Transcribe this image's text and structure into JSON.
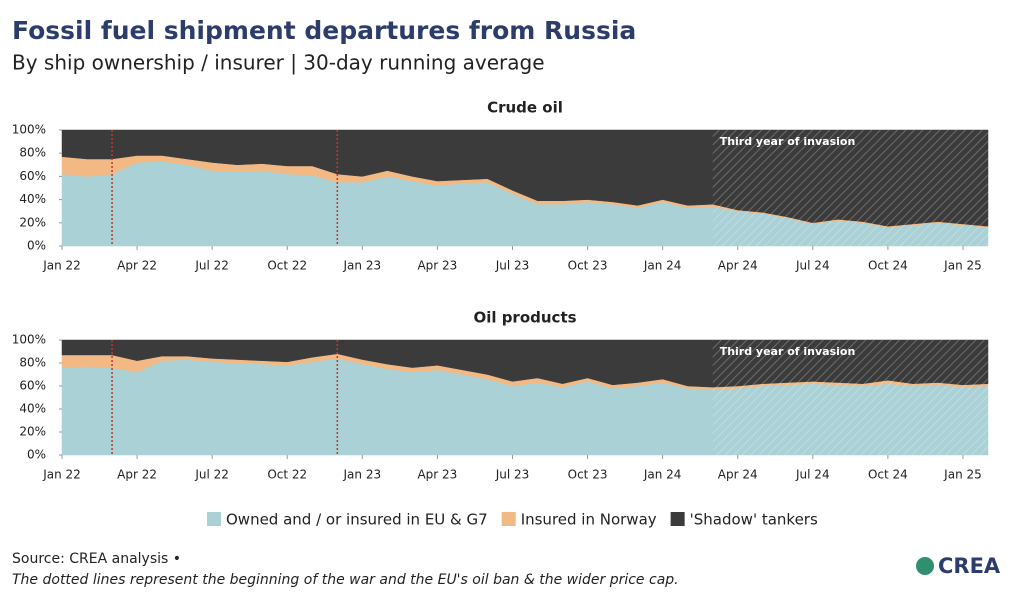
{
  "title": "Fossil fuel shipment departures from Russia",
  "subtitle": "By ship ownership / insurer | 30-day running average",
  "source": "Source: CREA analysis •",
  "note": "The dotted lines represent the beginning of the war and the EU's oil ban & the wider price cap.",
  "logo": "CREA",
  "chart_data": [
    {
      "type": "stacked-area",
      "title": "Crude oil",
      "x": [
        "2022-01",
        "2022-02",
        "2022-03",
        "2022-04",
        "2022-05",
        "2022-06",
        "2022-07",
        "2022-08",
        "2022-09",
        "2022-10",
        "2022-11",
        "2022-12",
        "2023-01",
        "2023-02",
        "2023-03",
        "2023-04",
        "2023-05",
        "2023-06",
        "2023-07",
        "2023-08",
        "2023-09",
        "2023-10",
        "2023-11",
        "2023-12",
        "2024-01",
        "2024-02",
        "2024-03",
        "2024-04",
        "2024-05",
        "2024-06",
        "2024-07",
        "2024-08",
        "2024-09",
        "2024-10",
        "2024-11",
        "2024-12",
        "2025-01",
        "2025-02"
      ],
      "series": [
        {
          "name": "Owned and / or insured in EU & G7",
          "color": "#a9d1d6",
          "values": [
            62,
            60,
            62,
            72,
            73,
            70,
            65,
            64,
            65,
            62,
            61,
            55,
            55,
            60,
            56,
            52,
            54,
            55,
            45,
            36,
            36,
            38,
            36,
            33,
            38,
            33,
            34,
            30,
            28,
            24,
            19,
            22,
            20,
            16,
            18,
            20,
            18,
            16
          ]
        },
        {
          "name": "Insured in Norway",
          "color": "#f2b984",
          "values": [
            15,
            15,
            13,
            6,
            5,
            5,
            7,
            6,
            6,
            7,
            8,
            7,
            5,
            5,
            4,
            4,
            3,
            3,
            3,
            3,
            3,
            2,
            2,
            2,
            2,
            2,
            2,
            1,
            1,
            1,
            1,
            1,
            1,
            1,
            1,
            1,
            1,
            1
          ]
        },
        {
          "name": "'Shadow' tankers",
          "color": "#3b3b3b",
          "values": [
            23,
            25,
            25,
            22,
            22,
            25,
            28,
            30,
            29,
            31,
            31,
            38,
            40,
            35,
            40,
            44,
            43,
            42,
            52,
            61,
            61,
            60,
            62,
            65,
            60,
            65,
            64,
            69,
            71,
            75,
            80,
            77,
            79,
            83,
            81,
            79,
            81,
            83
          ]
        }
      ],
      "xlim": [
        "2022-01",
        "2025-02"
      ],
      "xticks": [
        {
          "value": "2022-01",
          "label": "Jan 22"
        },
        {
          "value": "2022-04",
          "label": "Apr 22"
        },
        {
          "value": "2022-07",
          "label": "Jul 22"
        },
        {
          "value": "2022-10",
          "label": "Oct 22"
        },
        {
          "value": "2023-01",
          "label": "Jan 23"
        },
        {
          "value": "2023-04",
          "label": "Apr 23"
        },
        {
          "value": "2023-07",
          "label": "Jul 23"
        },
        {
          "value": "2023-10",
          "label": "Oct 23"
        },
        {
          "value": "2024-01",
          "label": "Jan 24"
        },
        {
          "value": "2024-04",
          "label": "Apr 24"
        },
        {
          "value": "2024-07",
          "label": "Jul 24"
        },
        {
          "value": "2024-10",
          "label": "Oct 24"
        },
        {
          "value": "2025-01",
          "label": "Jan 25"
        }
      ],
      "ylim": [
        0,
        100
      ],
      "yticks": [
        {
          "value": 0,
          "label": "0%"
        },
        {
          "value": 20,
          "label": "20%"
        },
        {
          "value": 40,
          "label": "40%"
        },
        {
          "value": 60,
          "label": "60%"
        },
        {
          "value": 80,
          "label": "80%"
        },
        {
          "value": 100,
          "label": "100%"
        }
      ],
      "event_lines": [
        "2022-03",
        "2022-12"
      ],
      "highlight": {
        "start": "2024-03",
        "label": "Third year of invasion"
      }
    },
    {
      "type": "stacked-area",
      "title": "Oil products",
      "x": [
        "2022-01",
        "2022-02",
        "2022-03",
        "2022-04",
        "2022-05",
        "2022-06",
        "2022-07",
        "2022-08",
        "2022-09",
        "2022-10",
        "2022-11",
        "2022-12",
        "2023-01",
        "2023-02",
        "2023-03",
        "2023-04",
        "2023-05",
        "2023-06",
        "2023-07",
        "2023-08",
        "2023-09",
        "2023-10",
        "2023-11",
        "2023-12",
        "2024-01",
        "2024-02",
        "2024-03",
        "2024-04",
        "2024-05",
        "2024-06",
        "2024-07",
        "2024-08",
        "2024-09",
        "2024-10",
        "2024-11",
        "2024-12",
        "2025-01",
        "2025-02"
      ],
      "series": [
        {
          "name": "Owned and / or insured in EU & G7",
          "color": "#a9d1d6",
          "values": [
            76,
            77,
            76,
            72,
            82,
            83,
            81,
            80,
            79,
            78,
            81,
            84,
            79,
            75,
            72,
            74,
            70,
            66,
            60,
            63,
            59,
            64,
            58,
            60,
            63,
            58,
            57,
            58,
            60,
            61,
            62,
            61,
            60,
            62,
            60,
            61,
            59,
            60
          ]
        },
        {
          "name": "Insured in Norway",
          "color": "#f2b984",
          "values": [
            11,
            10,
            11,
            10,
            4,
            3,
            3,
            3,
            3,
            3,
            4,
            4,
            4,
            4,
            4,
            4,
            4,
            4,
            4,
            4,
            3,
            3,
            3,
            3,
            3,
            2,
            2,
            2,
            2,
            2,
            2,
            2,
            2,
            3,
            2,
            2,
            2,
            2
          ]
        },
        {
          "name": "'Shadow' tankers",
          "color": "#3b3b3b",
          "values": [
            13,
            13,
            13,
            18,
            14,
            14,
            16,
            17,
            18,
            19,
            15,
            12,
            17,
            21,
            24,
            22,
            26,
            30,
            36,
            33,
            38,
            33,
            39,
            37,
            34,
            40,
            41,
            40,
            38,
            37,
            36,
            37,
            38,
            35,
            38,
            37,
            39,
            38
          ]
        }
      ],
      "xlim": [
        "2022-01",
        "2025-02"
      ],
      "xticks": [
        {
          "value": "2022-01",
          "label": "Jan 22"
        },
        {
          "value": "2022-04",
          "label": "Apr 22"
        },
        {
          "value": "2022-07",
          "label": "Jul 22"
        },
        {
          "value": "2022-10",
          "label": "Oct 22"
        },
        {
          "value": "2023-01",
          "label": "Jan 23"
        },
        {
          "value": "2023-04",
          "label": "Apr 23"
        },
        {
          "value": "2023-07",
          "label": "Jul 23"
        },
        {
          "value": "2023-10",
          "label": "Oct 23"
        },
        {
          "value": "2024-01",
          "label": "Jan 24"
        },
        {
          "value": "2024-04",
          "label": "Apr 24"
        },
        {
          "value": "2024-07",
          "label": "Jul 24"
        },
        {
          "value": "2024-10",
          "label": "Oct 24"
        },
        {
          "value": "2025-01",
          "label": "Jan 25"
        }
      ],
      "ylim": [
        0,
        100
      ],
      "yticks": [
        {
          "value": 0,
          "label": "0%"
        },
        {
          "value": 20,
          "label": "20%"
        },
        {
          "value": 40,
          "label": "40%"
        },
        {
          "value": 60,
          "label": "60%"
        },
        {
          "value": 80,
          "label": "80%"
        },
        {
          "value": 100,
          "label": "100%"
        }
      ],
      "event_lines": [
        "2022-03",
        "2022-12"
      ],
      "highlight": {
        "start": "2024-03",
        "label": "Third year of invasion"
      }
    }
  ]
}
